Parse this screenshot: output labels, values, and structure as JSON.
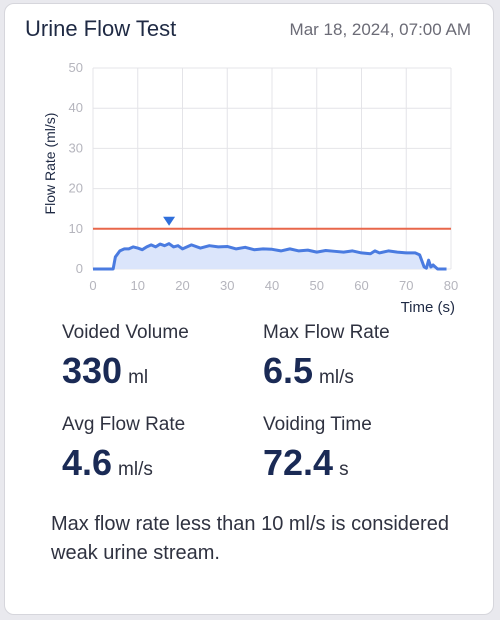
{
  "header": {
    "title": "Urine Flow Test",
    "datetime": "Mar 18, 2024, 07:00 AM"
  },
  "metrics": {
    "voided_volume": {
      "label": "Voided Volume",
      "value": "330",
      "unit": "ml"
    },
    "max_flow_rate": {
      "label": "Max Flow Rate",
      "value": "6.5",
      "unit": "ml/s"
    },
    "avg_flow_rate": {
      "label": "Avg Flow Rate",
      "value": "4.6",
      "unit": "ml/s"
    },
    "voiding_time": {
      "label": "Voiding Time",
      "value": "72.4",
      "unit": "s"
    }
  },
  "note": "Max flow rate less than 10 ml/s is considered weak urine stream.",
  "colors": {
    "line": "#4a7be0",
    "fill": "#dbe5fb",
    "threshold": "#e8674a",
    "marker": "#2f6fdb"
  },
  "chart_data": {
    "type": "area",
    "xlabel": "Time (s)",
    "ylabel": "Flow Rate (ml/s)",
    "xlim": [
      0,
      80
    ],
    "ylim": [
      0,
      50
    ],
    "xticks": [
      "0",
      "10",
      "20",
      "30",
      "40",
      "50",
      "60",
      "70",
      "80"
    ],
    "yticks": [
      "0",
      "10",
      "20",
      "30",
      "40",
      "50"
    ],
    "grid": true,
    "threshold": 10,
    "peak_marker": {
      "x": 17,
      "y": 6.5
    },
    "series": [
      {
        "x": [
          0,
          4.5,
          5,
          6,
          7,
          8,
          9,
          10,
          11,
          12,
          13,
          14,
          15,
          16,
          17,
          18,
          19,
          20,
          22,
          24,
          26,
          28,
          30,
          32,
          34,
          36,
          38,
          40,
          42,
          44,
          46,
          48,
          50,
          52,
          54,
          56,
          58,
          60,
          62,
          63,
          64,
          66,
          68,
          70,
          72,
          73,
          74,
          74.5,
          75,
          75.5,
          76,
          77,
          78,
          79
        ],
        "y": [
          0,
          0,
          3,
          4.5,
          5,
          5,
          5.5,
          5.2,
          4.8,
          5.5,
          6,
          5.5,
          6.2,
          5.8,
          6.3,
          5.5,
          5.8,
          5,
          6,
          5.2,
          5.8,
          5.5,
          5.6,
          5,
          5.4,
          4.8,
          5,
          4.9,
          4.5,
          5,
          4.5,
          4.7,
          4.2,
          4.6,
          4.4,
          4.2,
          4.5,
          4,
          3.8,
          4.5,
          4,
          4.5,
          4.2,
          4,
          4,
          3.5,
          0.5,
          0.2,
          2.2,
          0.5,
          1,
          0,
          0,
          0
        ]
      }
    ]
  }
}
